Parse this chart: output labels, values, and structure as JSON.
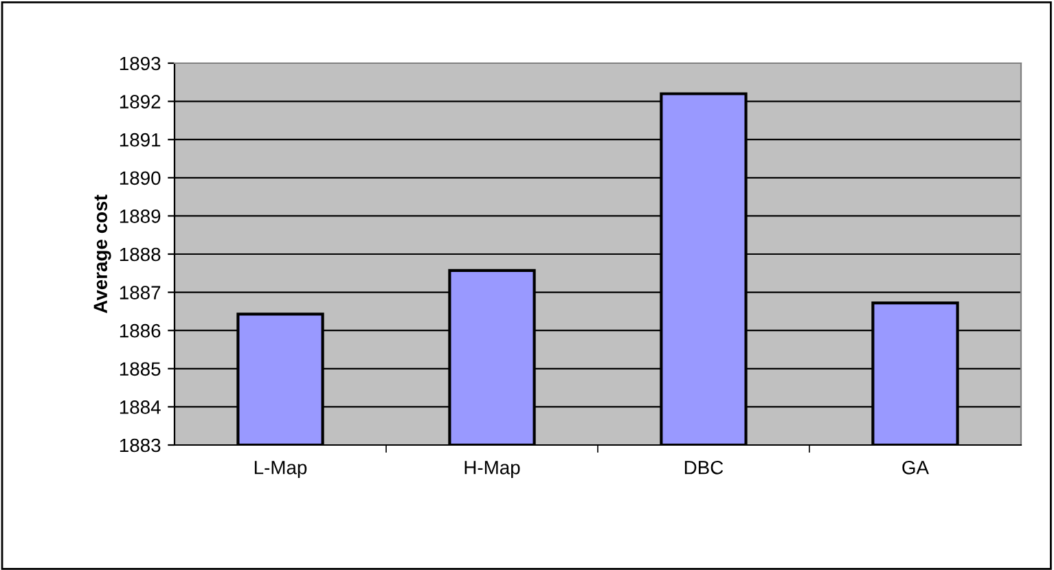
{
  "chart_data": {
    "type": "bar",
    "ylabel": "Average cost",
    "categories": [
      "L-Map",
      "H-Map",
      "DBC",
      "GA"
    ],
    "values": [
      1886.43,
      1887.57,
      1892.2,
      1886.72
    ],
    "color": "#9999ff",
    "ylim": [
      1883,
      1893
    ],
    "yticks": [
      1883,
      1884,
      1885,
      1886,
      1887,
      1888,
      1889,
      1890,
      1891,
      1892,
      1893
    ],
    "grid": "y"
  }
}
